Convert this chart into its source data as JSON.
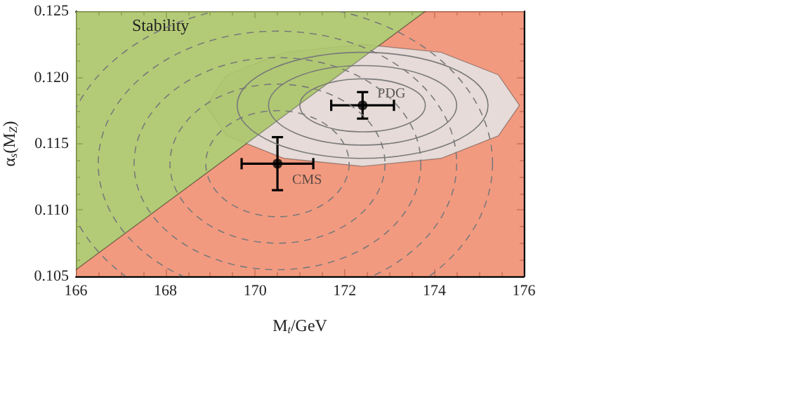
{
  "chart_data": {
    "type": "scatter",
    "xlabel": "M$_{t}$/GeV",
    "ylabel": "α$_{s}$(M$_{Z}$)",
    "xlim": [
      166,
      176
    ],
    "ylim": [
      0.105,
      0.125
    ],
    "xticks": [
      166,
      168,
      170,
      172,
      174,
      176
    ],
    "yticks": [
      0.105,
      {
        "value": 0.11,
        "label": "0.110"
      },
      0.115,
      {
        "value": 0.12,
        "label": "0.120"
      },
      0.125
    ],
    "grid": false,
    "legend": false,
    "annotations": [
      "Stability"
    ],
    "series": [
      {
        "type": "area",
        "color": "#f08c6e",
        "x": [
          166,
          166,
          173.8,
          176,
          176
        ],
        "values": [
          0.105,
          0.1055,
          0.125,
          0.125,
          0.105
        ]
      },
      {
        "type": "area",
        "color": "#e4e4e4",
        "x": [
          175.9,
          175.43,
          174.15,
          172.4,
          170.65,
          169.37,
          168.9,
          169.37,
          170.65,
          172.4,
          174.15,
          175.43,
          175.9
        ],
        "values": [
          0.1179,
          0.1202,
          0.1219,
          0.1225,
          0.1219,
          0.1202,
          0.1179,
          0.1156,
          0.1139,
          0.1133,
          0.1139,
          0.1156,
          0.1179
        ]
      },
      {
        "type": "area",
        "color": "#a9c463",
        "x": [
          166,
          166,
          173.8
        ],
        "values": [
          0.1055,
          0.125,
          0.125
        ]
      },
      {
        "name": "PDG",
        "marker": "circle",
        "line_style": "solid",
        "color": "#000000",
        "x": [
          172.4
        ],
        "values": [
          0.1179
        ],
        "xerrors": [
          0.7
        ],
        "errors": [
          0.001
        ]
      },
      {
        "name": "CMS",
        "marker": "circle",
        "line_style": "dashed",
        "color": "#000000",
        "x": [
          170.5
        ],
        "values": [
          0.1135
        ],
        "xerrors": [
          0.8
        ],
        "errors": [
          0.002
        ]
      }
    ]
  }
}
